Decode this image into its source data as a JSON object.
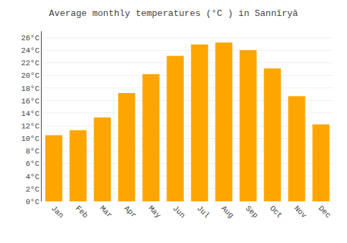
{
  "chart_data": {
    "type": "bar",
    "title": "Average monthly temperatures (°C ) in Sannīryā",
    "categories": [
      "Jan",
      "Feb",
      "Mar",
      "Apr",
      "May",
      "Jun",
      "Jul",
      "Aug",
      "Sep",
      "Oct",
      "Nov",
      "Dec"
    ],
    "values": [
      10.5,
      11.3,
      13.3,
      17.2,
      20.2,
      23.1,
      24.9,
      25.2,
      24.0,
      21.1,
      16.7,
      12.2
    ],
    "color": "#FFA500",
    "ylim": [
      0,
      27
    ],
    "yticks": [
      {
        "value": 0,
        "label": "0°C"
      },
      {
        "value": 2,
        "label": "2°C"
      },
      {
        "value": 4,
        "label": "4°C"
      },
      {
        "value": 6,
        "label": "6°C"
      },
      {
        "value": 8,
        "label": "8°C"
      },
      {
        "value": 10,
        "label": "10°C"
      },
      {
        "value": 12,
        "label": "12°C"
      },
      {
        "value": 14,
        "label": "14°C"
      },
      {
        "value": 16,
        "label": "16°C"
      },
      {
        "value": 18,
        "label": "18°C"
      },
      {
        "value": 20,
        "label": "20°C"
      },
      {
        "value": 22,
        "label": "22°C"
      },
      {
        "value": 24,
        "label": "24°C"
      },
      {
        "value": 26,
        "label": "26°C"
      }
    ],
    "grid": true
  }
}
